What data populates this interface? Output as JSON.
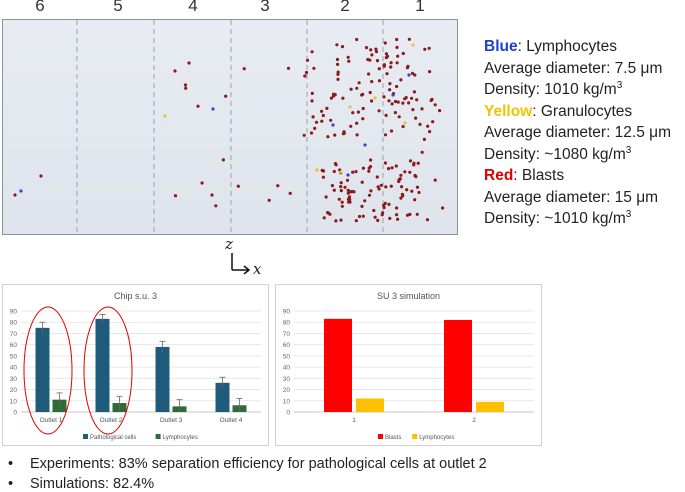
{
  "simulation": {
    "region_labels": [
      "6",
      "5",
      "4",
      "3",
      "2",
      "1"
    ],
    "particle_colors": {
      "blasts": "#8b1a1a",
      "lymphocytes": "#3a44c8",
      "granulocytes": "#e8c23a"
    }
  },
  "legend": {
    "lines": [
      {
        "color_word": "Blue",
        "color": "#1f3fd6",
        "rest": ": Lymphocytes"
      },
      {
        "text": "Average diameter: 7.5 μm"
      },
      {
        "text": "Density: 1010 kg/m",
        "sup": "3"
      },
      {
        "color_word": "Yellow",
        "color": "#f2c300",
        "rest": ": Granulocytes"
      },
      {
        "text": "Average diameter: 12.5 μm"
      },
      {
        "text": "Density: ~1080 kg/m",
        "sup": "3"
      },
      {
        "color_word": "Red",
        "color": "#e00000",
        "rest": ": Blasts"
      },
      {
        "text": "Average diameter: 15 μm"
      },
      {
        "text": "Density: ~1010 kg/m",
        "sup": "3"
      }
    ]
  },
  "axes_icon": {
    "z": "z",
    "x": "x"
  },
  "chart_data": [
    {
      "type": "bar",
      "title": "Chip s.u. 3",
      "categories": [
        "Outlet 1",
        "Outlet 2",
        "Outlet 3",
        "Outlet 4"
      ],
      "series": [
        {
          "name": "Pathological cells",
          "color": "#1f5c7c",
          "values": [
            75,
            83,
            58,
            26
          ],
          "errors": [
            5,
            4,
            5,
            5
          ]
        },
        {
          "name": "Lymphocytes",
          "color": "#2f6b38",
          "values": [
            11,
            8,
            5,
            6
          ],
          "errors": [
            6,
            6,
            6,
            6
          ]
        }
      ],
      "ylim": [
        0,
        90
      ],
      "yticks": [
        0,
        10,
        20,
        30,
        40,
        50,
        60,
        70,
        80,
        90
      ],
      "highlighted": [
        "Outlet 1",
        "Outlet 2"
      ],
      "legend_position": "bottom"
    },
    {
      "type": "bar",
      "title": "SU 3 simulation",
      "categories": [
        "1",
        "2"
      ],
      "series": [
        {
          "name": "Blasts",
          "color": "#ff0000",
          "values": [
            83,
            82
          ]
        },
        {
          "name": "Lymphocytes",
          "color": "#ffc000",
          "values": [
            12,
            9
          ]
        }
      ],
      "ylim": [
        0,
        90
      ],
      "yticks": [
        0,
        10,
        20,
        30,
        40,
        50,
        60,
        70,
        80,
        90
      ],
      "legend_position": "bottom"
    }
  ],
  "bullets": [
    "Experiments: 83% separation efficiency for pathological cells at outlet 2",
    "Simulations: 82.4%"
  ],
  "bullet_symbol": "•"
}
